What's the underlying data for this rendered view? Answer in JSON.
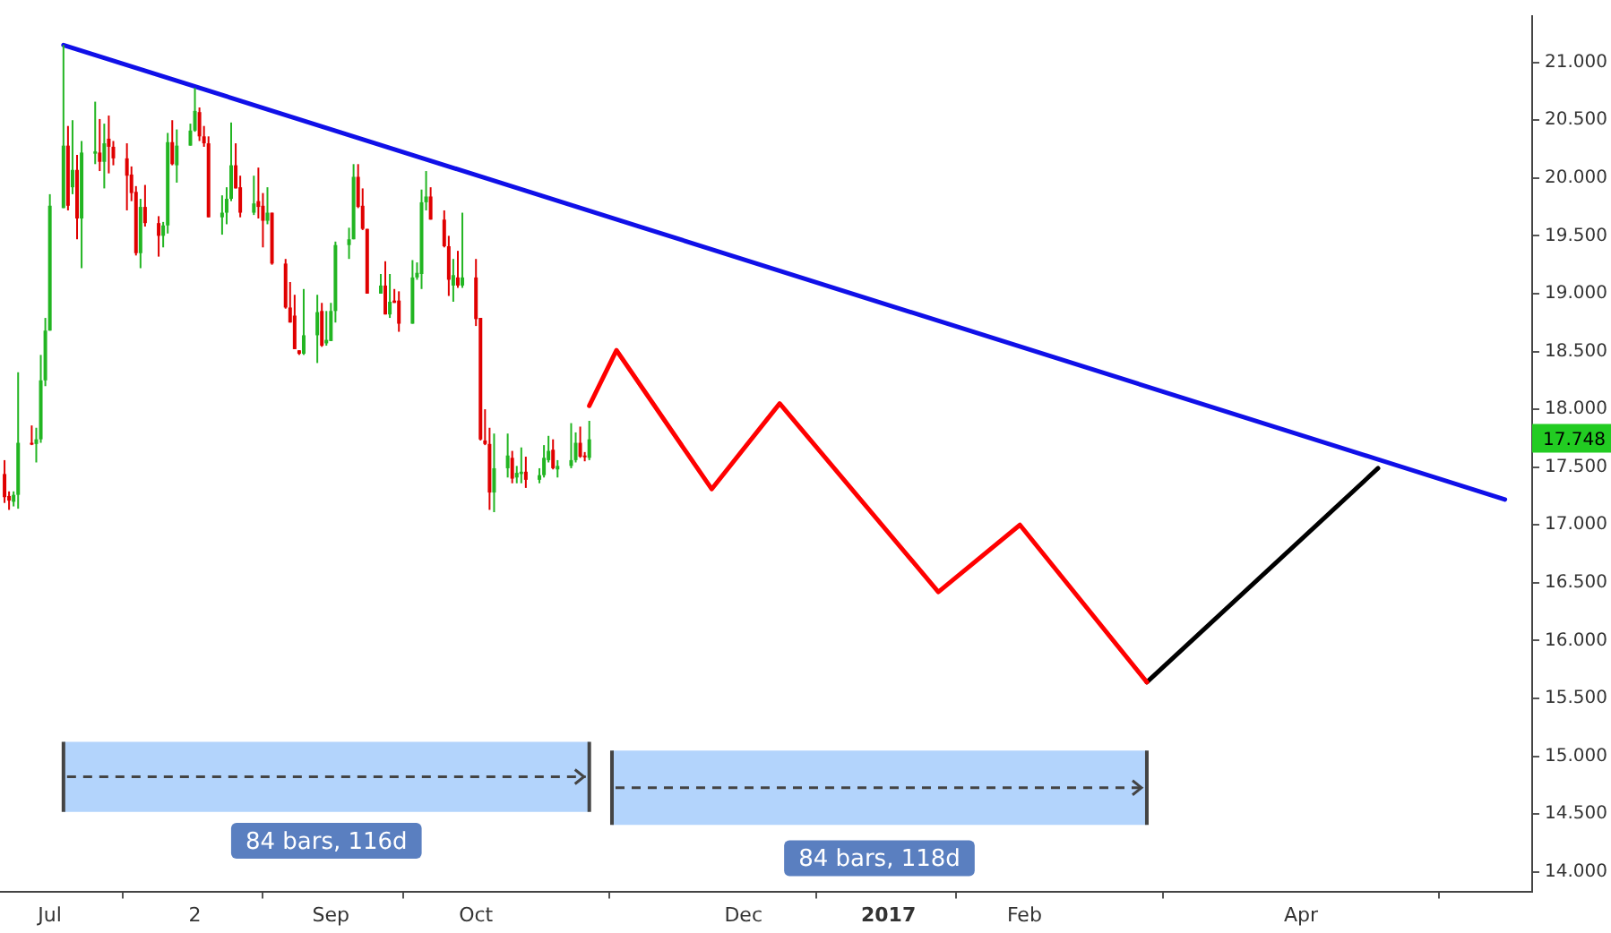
{
  "chart_data": {
    "type": "candlestick",
    "series": [
      {
        "type": "candlestick",
        "x": [
          "2016-06-21",
          "2016-06-22",
          "2016-06-23",
          "2016-06-24",
          "2016-06-27",
          "2016-06-28",
          "2016-06-29",
          "2016-06-30",
          "2016-07-01",
          "2016-07-04",
          "2016-07-05",
          "2016-07-06",
          "2016-07-07",
          "2016-07-08",
          "2016-07-11",
          "2016-07-12",
          "2016-07-13",
          "2016-07-14",
          "2016-07-15",
          "2016-07-18",
          "2016-07-19",
          "2016-07-20",
          "2016-07-21",
          "2016-07-22",
          "2016-07-25",
          "2016-07-26",
          "2016-07-27",
          "2016-07-28",
          "2016-07-29",
          "2016-08-01",
          "2016-08-02",
          "2016-08-03",
          "2016-08-04",
          "2016-08-05",
          "2016-08-08",
          "2016-08-09",
          "2016-08-10",
          "2016-08-11",
          "2016-08-12",
          "2016-08-15",
          "2016-08-16",
          "2016-08-17",
          "2016-08-18",
          "2016-08-19",
          "2016-08-22",
          "2016-08-23",
          "2016-08-24",
          "2016-08-25",
          "2016-08-26",
          "2016-08-29",
          "2016-08-30",
          "2016-08-31",
          "2016-09-01",
          "2016-09-02",
          "2016-09-05",
          "2016-09-06",
          "2016-09-07",
          "2016-09-08",
          "2016-09-09",
          "2016-09-12",
          "2016-09-13",
          "2016-09-14",
          "2016-09-15",
          "2016-09-16",
          "2016-09-19",
          "2016-09-20",
          "2016-09-21",
          "2016-09-22",
          "2016-09-23",
          "2016-09-26",
          "2016-09-27",
          "2016-09-28",
          "2016-09-29",
          "2016-09-30",
          "2016-10-03",
          "2016-10-04",
          "2016-10-05",
          "2016-10-06",
          "2016-10-07",
          "2016-10-10",
          "2016-10-11",
          "2016-10-12",
          "2016-10-13",
          "2016-10-14",
          "2016-10-17",
          "2016-10-18",
          "2016-10-19",
          "2016-10-20",
          "2016-10-21",
          "2016-10-24",
          "2016-10-25",
          "2016-10-26",
          "2016-10-27",
          "2016-10-28"
        ],
        "ohlc": [
          [
            17.44,
            17.56,
            17.19,
            17.24
          ],
          [
            17.25,
            17.29,
            17.13,
            17.21
          ],
          [
            17.2,
            17.29,
            17.16,
            17.26
          ],
          [
            17.26,
            18.32,
            17.14,
            17.71
          ],
          [
            17.71,
            17.86,
            17.69,
            17.7
          ],
          [
            17.7,
            17.84,
            17.54,
            17.74
          ],
          [
            17.74,
            18.47,
            17.71,
            18.25
          ],
          [
            18.25,
            18.79,
            18.2,
            18.68
          ],
          [
            18.68,
            19.86,
            18.68,
            19.76
          ],
          [
            19.74,
            21.15,
            19.74,
            20.28
          ],
          [
            20.28,
            20.45,
            19.72,
            19.76
          ],
          [
            19.92,
            20.5,
            19.86,
            20.07
          ],
          [
            20.07,
            20.2,
            19.47,
            19.65
          ],
          [
            19.65,
            20.32,
            19.22,
            20.22
          ],
          [
            20.21,
            20.66,
            20.12,
            20.23
          ],
          [
            20.22,
            20.51,
            20.06,
            20.14
          ],
          [
            20.14,
            20.47,
            19.91,
            20.3
          ],
          [
            20.34,
            20.54,
            20.04,
            20.27
          ],
          [
            20.27,
            20.32,
            20.11,
            20.17
          ],
          [
            20.17,
            20.3,
            19.72,
            20.02
          ],
          [
            20.03,
            20.1,
            19.8,
            19.87
          ],
          [
            19.88,
            19.93,
            19.33,
            19.35
          ],
          [
            19.35,
            19.82,
            19.22,
            19.75
          ],
          [
            19.75,
            19.94,
            19.58,
            19.61
          ],
          [
            19.61,
            19.67,
            19.32,
            19.5
          ],
          [
            19.5,
            19.62,
            19.4,
            19.59
          ],
          [
            19.59,
            20.39,
            19.52,
            20.31
          ],
          [
            20.31,
            20.5,
            20.11,
            20.12
          ],
          [
            20.11,
            20.42,
            19.96,
            20.28
          ],
          [
            20.28,
            20.47,
            20.28,
            20.41
          ],
          [
            20.41,
            20.78,
            20.4,
            20.58
          ],
          [
            20.57,
            20.61,
            20.32,
            20.36
          ],
          [
            20.36,
            20.45,
            20.27,
            20.3
          ],
          [
            20.3,
            20.36,
            19.66,
            19.66
          ],
          [
            19.66,
            19.85,
            19.51,
            19.7
          ],
          [
            19.7,
            19.92,
            19.6,
            19.82
          ],
          [
            19.82,
            20.48,
            19.8,
            20.11
          ],
          [
            20.11,
            20.3,
            19.91,
            19.91
          ],
          [
            19.92,
            20.02,
            19.66,
            19.7
          ],
          [
            19.7,
            20.02,
            19.68,
            19.78
          ],
          [
            19.8,
            20.09,
            19.65,
            19.75
          ],
          [
            19.76,
            19.87,
            19.4,
            19.63
          ],
          [
            19.63,
            19.92,
            19.6,
            19.7
          ],
          [
            19.7,
            19.7,
            19.25,
            19.26
          ],
          [
            19.26,
            19.3,
            18.87,
            18.88
          ],
          [
            18.88,
            19.1,
            18.75,
            18.75
          ],
          [
            18.81,
            18.99,
            18.52,
            18.52
          ],
          [
            18.51,
            18.51,
            18.47,
            18.48
          ],
          [
            18.48,
            19.04,
            18.47,
            18.64
          ],
          [
            18.64,
            18.99,
            18.4,
            18.84
          ],
          [
            18.85,
            18.92,
            18.54,
            18.55
          ],
          [
            18.57,
            18.85,
            18.55,
            18.6
          ],
          [
            18.59,
            18.92,
            18.59,
            18.85
          ],
          [
            18.85,
            19.45,
            18.75,
            19.42
          ],
          [
            19.42,
            19.57,
            19.3,
            19.47
          ],
          [
            19.47,
            20.12,
            19.47,
            20.01
          ],
          [
            20.01,
            20.12,
            19.74,
            19.75
          ],
          [
            19.76,
            19.91,
            19.55,
            19.56
          ],
          [
            19.56,
            19.56,
            19.0,
            19.0
          ],
          [
            19.0,
            19.17,
            19.0,
            19.07
          ],
          [
            19.07,
            19.28,
            18.82,
            18.82
          ],
          [
            18.82,
            19.17,
            18.79,
            18.93
          ],
          [
            18.94,
            19.04,
            18.92,
            18.92
          ],
          [
            18.94,
            19.02,
            18.67,
            18.74
          ],
          [
            18.74,
            19.29,
            18.74,
            19.14
          ],
          [
            19.14,
            19.27,
            19.12,
            19.18
          ],
          [
            19.17,
            19.9,
            19.04,
            19.79
          ],
          [
            19.79,
            20.06,
            19.72,
            19.84
          ],
          [
            19.84,
            19.92,
            19.64,
            19.64
          ],
          [
            19.64,
            19.72,
            19.4,
            19.41
          ],
          [
            19.41,
            19.5,
            18.98,
            19.12
          ],
          [
            19.07,
            19.3,
            18.93,
            19.16
          ],
          [
            19.14,
            19.37,
            19.05,
            19.07
          ],
          [
            19.07,
            19.7,
            19.05,
            19.14
          ],
          [
            19.14,
            19.3,
            18.72,
            18.78
          ],
          [
            18.79,
            18.79,
            17.73,
            17.74
          ],
          [
            17.73,
            18.0,
            17.69,
            17.7
          ],
          [
            17.7,
            17.84,
            17.13,
            17.28
          ],
          [
            17.28,
            17.79,
            17.11,
            17.49
          ],
          [
            17.49,
            17.79,
            17.41,
            17.6
          ],
          [
            17.58,
            17.64,
            17.36,
            17.4
          ],
          [
            17.41,
            17.51,
            17.36,
            17.45
          ],
          [
            17.44,
            17.67,
            17.36,
            17.46
          ],
          [
            17.46,
            17.59,
            17.32,
            17.39
          ],
          [
            17.39,
            17.49,
            17.36,
            17.43
          ],
          [
            17.43,
            17.69,
            17.41,
            17.58
          ],
          [
            17.56,
            17.77,
            17.54,
            17.64
          ],
          [
            17.65,
            17.74,
            17.48,
            17.49
          ],
          [
            17.48,
            17.56,
            17.41,
            17.51
          ],
          [
            17.51,
            17.88,
            17.49,
            17.56
          ],
          [
            17.56,
            17.8,
            17.54,
            17.71
          ],
          [
            17.71,
            17.85,
            17.58,
            17.59
          ],
          [
            17.6,
            17.63,
            17.55,
            17.59
          ],
          [
            17.58,
            17.9,
            17.56,
            17.74
          ]
        ],
        "colors": [
          "#e00000",
          "#e00000",
          "#22b522",
          "#22b522",
          "#e00000",
          "#22b522",
          "#22b522",
          "#22b522",
          "#22b522",
          "#22b522",
          "#e00000",
          "#22b522",
          "#e00000",
          "#22b522",
          "#22b522",
          "#e00000",
          "#22b522",
          "#e00000",
          "#e00000",
          "#e00000",
          "#e00000",
          "#e00000",
          "#22b522",
          "#e00000",
          "#e00000",
          "#22b522",
          "#22b522",
          "#e00000",
          "#22b522",
          "#22b522",
          "#22b522",
          "#e00000",
          "#e00000",
          "#e00000",
          "#22b522",
          "#22b522",
          "#22b522",
          "#e00000",
          "#e00000",
          "#22b522",
          "#e00000",
          "#e00000",
          "#22b522",
          "#e00000",
          "#e00000",
          "#e00000",
          "#e00000",
          "#e00000",
          "#22b522",
          "#22b522",
          "#e00000",
          "#22b522",
          "#22b522",
          "#22b522",
          "#22b522",
          "#22b522",
          "#e00000",
          "#e00000",
          "#e00000",
          "#22b522",
          "#e00000",
          "#22b522",
          "#e00000",
          "#e00000",
          "#22b522",
          "#22b522",
          "#22b522",
          "#22b522",
          "#e00000",
          "#e00000",
          "#e00000",
          "#22b522",
          "#e00000",
          "#22b522",
          "#e00000",
          "#e00000",
          "#e00000",
          "#e00000",
          "#22b522",
          "#22b522",
          "#e00000",
          "#22b522",
          "#22b522",
          "#e00000",
          "#22b522",
          "#22b522",
          "#22b522",
          "#e00000",
          "#22b522",
          "#22b522",
          "#22b522",
          "#e00000",
          "#e00000",
          "#22b522"
        ]
      },
      {
        "type": "line",
        "color": "#1010e8",
        "x": [
          "2016-07-04",
          "2017-05-18"
        ],
        "values": [
          21.15,
          17.22
        ]
      },
      {
        "type": "line",
        "color": "#ff0000",
        "x": [
          "2016-10-28",
          "2016-11-03",
          "2016-11-24",
          "2016-12-09",
          "2017-01-13",
          "2017-01-31",
          "2017-02-28"
        ],
        "values": [
          18.03,
          18.51,
          17.31,
          18.05,
          16.42,
          17.0,
          15.64
        ]
      },
      {
        "type": "line",
        "color": "#000000",
        "x": [
          "2017-02-28",
          "2017-04-20"
        ],
        "values": [
          15.64,
          17.49
        ]
      }
    ],
    "xlim": [
      "2016-06-20",
      "2017-05-24"
    ],
    "xticks": [
      {
        "value": "2016-07-01",
        "label": "Jul"
      },
      {
        "value": "2016-08-02",
        "label": "2"
      },
      {
        "value": "2016-09-01",
        "label": "Sep"
      },
      {
        "value": "2016-10-03",
        "label": "Oct"
      },
      {
        "value": "2016-12-01",
        "label": "Dec"
      },
      {
        "value": "2017-01-02",
        "label": "2017"
      },
      {
        "value": "2017-02-01",
        "label": "Feb"
      },
      {
        "value": "2017-04-03",
        "label": "Apr"
      }
    ],
    "ylim": [
      13.83,
      21.4
    ],
    "yticks": [
      {
        "value": 14,
        "label": "14.000"
      },
      {
        "value": 14.5,
        "label": "14.500"
      },
      {
        "value": 15,
        "label": "15.000"
      },
      {
        "value": 15.5,
        "label": "15.500"
      },
      {
        "value": 16,
        "label": "16.000"
      },
      {
        "value": 16.5,
        "label": "16.500"
      },
      {
        "value": 17,
        "label": "17.000"
      },
      {
        "value": 17.5,
        "label": "17.500"
      },
      {
        "value": 18,
        "label": "18.000"
      },
      {
        "value": 18.5,
        "label": "18.500"
      },
      {
        "value": 19,
        "label": "19.000"
      },
      {
        "value": 19.5,
        "label": "19.500"
      },
      {
        "value": 20,
        "label": "20.000"
      },
      {
        "value": 20.5,
        "label": "20.500"
      },
      {
        "value": 21,
        "label": "21.000"
      }
    ],
    "annotations": [
      {
        "text": "17.748",
        "y": 17.748
      }
    ],
    "bands": [
      {
        "axis": "x",
        "from": "2016-07-04",
        "to": "2016-10-28",
        "label": "84 bars, 116d",
        "color": "#b3d4fc"
      },
      {
        "axis": "x",
        "from": "2016-11-02",
        "to": "2017-02-28",
        "label": "84 bars, 118d",
        "color": "#b3d4fc"
      }
    ],
    "grid": false,
    "legend": false,
    "marker": "none",
    "line_style": "solid"
  }
}
